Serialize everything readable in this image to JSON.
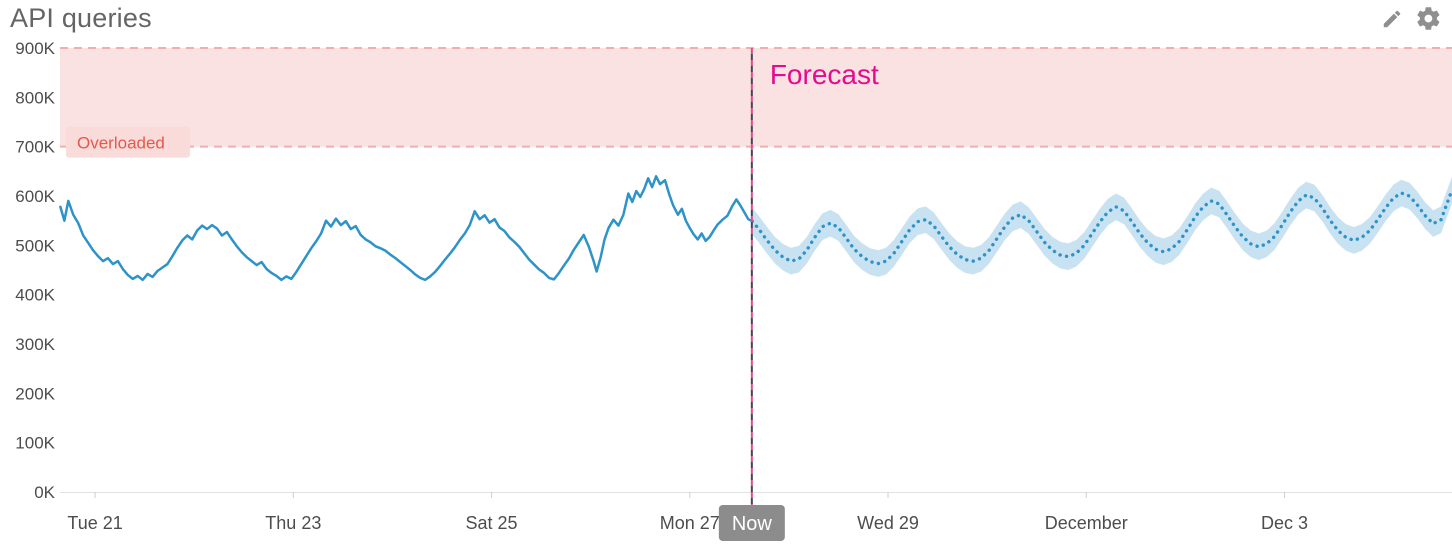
{
  "header": {
    "title": "API queries",
    "icons": [
      {
        "name": "pencil-icon",
        "action": "edit"
      },
      {
        "name": "gear-icon",
        "action": "settings"
      }
    ]
  },
  "chart_data": {
    "type": "line",
    "title": "API queries",
    "ylabel": "API queries",
    "y_unit": "K",
    "ylim": [
      0,
      900
    ],
    "x_range": [
      -0.354,
      13.69
    ],
    "grid": "off",
    "y_ticks": [
      {
        "v": 0,
        "label": "0K"
      },
      {
        "v": 100,
        "label": "100K"
      },
      {
        "v": 200,
        "label": "200K"
      },
      {
        "v": 300,
        "label": "300K"
      },
      {
        "v": 400,
        "label": "400K"
      },
      {
        "v": 500,
        "label": "500K"
      },
      {
        "v": 600,
        "label": "600K"
      },
      {
        "v": 700,
        "label": "700K"
      },
      {
        "v": 800,
        "label": "800K"
      },
      {
        "v": 900,
        "label": "900K"
      }
    ],
    "x_ticks": [
      {
        "d": 0,
        "label": "Tue 21"
      },
      {
        "d": 2,
        "label": "Thu 23"
      },
      {
        "d": 4,
        "label": "Sat 25"
      },
      {
        "d": 6,
        "label": "Mon 27"
      },
      {
        "d": 8,
        "label": "Wed 29"
      },
      {
        "d": 10,
        "label": "December"
      },
      {
        "d": 12,
        "label": "Dec 3"
      }
    ],
    "now": {
      "d": 6.626,
      "label": "Now"
    },
    "forecast_label": "Forecast",
    "overload_zone": {
      "label": "Overloaded",
      "from": 700,
      "to": 900
    },
    "colors": {
      "line": "#2e93c9",
      "band": "#c9e2f2",
      "overload_fill": "#fbe2e2",
      "overload_border": "#f2aeae",
      "overload_label_bg": "#f9dbd9",
      "overload_text": "#e6584c",
      "forecast_text": "#e50b8d",
      "now_dash_a": "#44445c",
      "now_dash_b": "#e04a86",
      "badge_bg": "#8c8c8c",
      "badge_text": "#ffffff",
      "axis_text": "#4d4d4d",
      "axis_line": "#e2e2e2"
    },
    "series": [
      {
        "name": "history",
        "style": "solid",
        "x": [
          -0.35,
          -0.31,
          -0.27,
          -0.22,
          -0.17,
          -0.12,
          -0.07,
          -0.02,
          0.03,
          0.08,
          0.13,
          0.18,
          0.23,
          0.28,
          0.33,
          0.38,
          0.43,
          0.48,
          0.53,
          0.58,
          0.63,
          0.68,
          0.73,
          0.78,
          0.83,
          0.88,
          0.93,
          0.98,
          1.03,
          1.08,
          1.13,
          1.18,
          1.23,
          1.28,
          1.33,
          1.38,
          1.43,
          1.48,
          1.53,
          1.58,
          1.63,
          1.68,
          1.73,
          1.78,
          1.83,
          1.88,
          1.93,
          1.98,
          2.03,
          2.08,
          2.13,
          2.18,
          2.23,
          2.28,
          2.33,
          2.38,
          2.43,
          2.48,
          2.53,
          2.58,
          2.63,
          2.68,
          2.73,
          2.78,
          2.83,
          2.88,
          2.93,
          2.98,
          3.03,
          3.08,
          3.13,
          3.18,
          3.23,
          3.28,
          3.33,
          3.38,
          3.43,
          3.48,
          3.53,
          3.58,
          3.63,
          3.68,
          3.73,
          3.78,
          3.83,
          3.88,
          3.93,
          3.98,
          4.03,
          4.08,
          4.13,
          4.18,
          4.23,
          4.28,
          4.33,
          4.38,
          4.43,
          4.48,
          4.53,
          4.58,
          4.63,
          4.68,
          4.73,
          4.78,
          4.83,
          4.88,
          4.93,
          4.98,
          5.03,
          5.06,
          5.1,
          5.14,
          5.18,
          5.23,
          5.28,
          5.33,
          5.38,
          5.42,
          5.46,
          5.5,
          5.54,
          5.58,
          5.62,
          5.66,
          5.7,
          5.75,
          5.79,
          5.83,
          5.88,
          5.92,
          5.96,
          6.0,
          6.04,
          6.08,
          6.12,
          6.16,
          6.2,
          6.24,
          6.28,
          6.33,
          6.38,
          6.43,
          6.47,
          6.51,
          6.55,
          6.59,
          6.63
        ],
        "values": [
          578,
          550,
          590,
          562,
          545,
          520,
          505,
          490,
          478,
          468,
          474,
          462,
          468,
          452,
          440,
          432,
          438,
          430,
          442,
          436,
          448,
          455,
          462,
          478,
          495,
          510,
          520,
          512,
          530,
          540,
          533,
          541,
          534,
          520,
          527,
          512,
          498,
          486,
          476,
          468,
          460,
          466,
          452,
          444,
          438,
          430,
          437,
          432,
          446,
          462,
          478,
          494,
          508,
          524,
          550,
          538,
          554,
          541,
          549,
          533,
          539,
          521,
          512,
          506,
          498,
          494,
          489,
          481,
          474,
          466,
          458,
          450,
          441,
          434,
          430,
          437,
          446,
          458,
          471,
          483,
          496,
          511,
          524,
          541,
          569,
          553,
          561,
          546,
          553,
          536,
          529,
          516,
          507,
          497,
          484,
          471,
          461,
          451,
          444,
          434,
          431,
          444,
          459,
          473,
          491,
          506,
          521,
          498,
          468,
          447,
          475,
          512,
          535,
          552,
          540,
          562,
          605,
          588,
          610,
          598,
          614,
          636,
          618,
          640,
          624,
          632,
          605,
          582,
          562,
          574,
          550,
          535,
          522,
          512,
          524,
          509,
          517,
          530,
          542,
          552,
          560,
          580,
          593,
          581,
          567,
          553,
          549
        ]
      },
      {
        "name": "forecast",
        "style": "dotted",
        "band_width": 27,
        "x": [
          6.63,
          6.7,
          6.78,
          6.86,
          6.94,
          7.02,
          7.1,
          7.18,
          7.26,
          7.34,
          7.42,
          7.5,
          7.58,
          7.66,
          7.74,
          7.82,
          7.9,
          7.98,
          8.06,
          8.14,
          8.22,
          8.3,
          8.38,
          8.46,
          8.54,
          8.62,
          8.7,
          8.78,
          8.86,
          8.94,
          9.02,
          9.1,
          9.18,
          9.26,
          9.34,
          9.42,
          9.5,
          9.58,
          9.66,
          9.74,
          9.82,
          9.9,
          9.98,
          10.06,
          10.14,
          10.22,
          10.3,
          10.38,
          10.46,
          10.54,
          10.62,
          10.7,
          10.78,
          10.86,
          10.94,
          11.02,
          11.1,
          11.18,
          11.26,
          11.34,
          11.42,
          11.5,
          11.58,
          11.66,
          11.74,
          11.82,
          11.9,
          11.98,
          12.06,
          12.14,
          12.22,
          12.3,
          12.38,
          12.46,
          12.54,
          12.62,
          12.7,
          12.78,
          12.86,
          12.94,
          13.02,
          13.1,
          13.18,
          13.26,
          13.34,
          13.42,
          13.5,
          13.58,
          13.64,
          13.69
        ],
        "values": [
          549,
          532,
          510,
          490,
          476,
          468,
          472,
          490,
          516,
          538,
          545,
          536,
          514,
          492,
          477,
          467,
          463,
          468,
          484,
          508,
          532,
          548,
          552,
          540,
          518,
          497,
          481,
          471,
          468,
          474,
          490,
          514,
          538,
          556,
          562,
          550,
          528,
          506,
          490,
          480,
          477,
          484,
          500,
          524,
          548,
          568,
          578,
          570,
          548,
          524,
          505,
          492,
          487,
          493,
          508,
          532,
          558,
          578,
          590,
          584,
          562,
          538,
          517,
          503,
          497,
          503,
          518,
          542,
          568,
          590,
          602,
          596,
          576,
          551,
          530,
          516,
          510,
          516,
          530,
          552,
          576,
          596,
          606,
          600,
          582,
          560,
          544,
          552,
          585,
          612
        ]
      }
    ]
  }
}
